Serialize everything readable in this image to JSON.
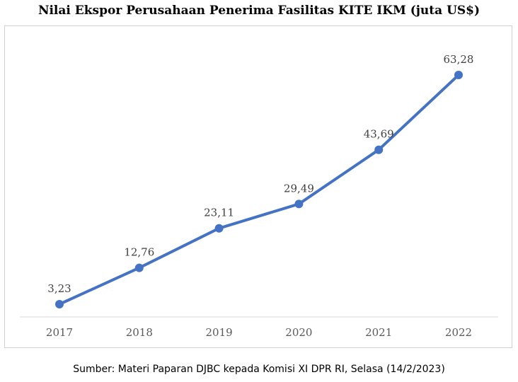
{
  "chart_data": {
    "type": "line",
    "title": "Nilai Ekspor Perusahaan Penerima Fasilitas KITE IKM (juta US$)",
    "categories": [
      "2017",
      "2018",
      "2019",
      "2020",
      "2021",
      "2022"
    ],
    "series": [
      {
        "values": [
          3.23,
          12.76,
          23.11,
          29.49,
          43.69,
          63.28
        ],
        "data_labels": [
          "3,23",
          "12,76",
          "23,11",
          "29,49",
          "43,69",
          "63,28"
        ],
        "color": "#4472c4"
      }
    ],
    "grid": false,
    "legend": "none"
  },
  "source_note": "Sumber: Materi Paparan DJBC kepada Komisi XI DPR RI, Selasa (14/2/2023)"
}
